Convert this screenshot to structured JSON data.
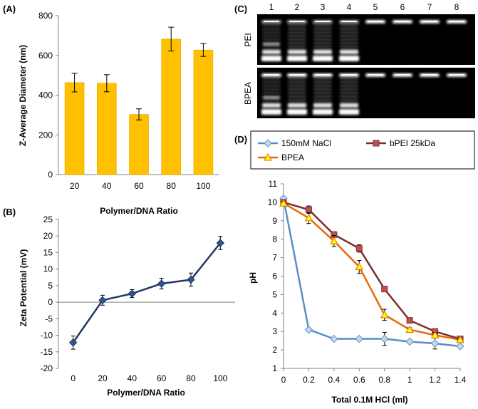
{
  "chart_data": [
    {
      "id": "A",
      "type": "bar",
      "panel_label": "(A)",
      "categories": [
        "20",
        "40",
        "60",
        "80",
        "100"
      ],
      "values": [
        463,
        460,
        303,
        682,
        627
      ],
      "errors": [
        47,
        43,
        28,
        60,
        32
      ],
      "ylim": [
        0,
        800
      ],
      "yticks": [
        0,
        200,
        400,
        600,
        800
      ],
      "xlabel": "Polymer/DNA Ratio",
      "ylabel": "Z-Average Diameter (nm)",
      "color": "#FFC000",
      "grid": false
    },
    {
      "id": "B",
      "type": "line",
      "panel_label": "(B)",
      "x": [
        0,
        20,
        40,
        60,
        80,
        100
      ],
      "y": [
        -12.2,
        0.6,
        2.6,
        5.6,
        6.8,
        17.9
      ],
      "errors": [
        2.0,
        1.5,
        1.2,
        1.6,
        2.0,
        2.0
      ],
      "xlim": [
        -10,
        110
      ],
      "xticks": [
        0,
        20,
        40,
        60,
        80,
        100
      ],
      "ylim": [
        -20,
        25
      ],
      "yticks": [
        -20,
        -15,
        -10,
        -5,
        0,
        5,
        10,
        15,
        20,
        25
      ],
      "xlabel": "Polymer/DNA Ratio",
      "ylabel": "Zeta Potential (mV)",
      "color": "#1F3864",
      "marker": "diamond",
      "grid": false
    },
    {
      "id": "D",
      "type": "line",
      "panel_label": "(D)",
      "x": [
        0,
        0.2,
        0.4,
        0.6,
        0.8,
        1,
        1.2,
        1.4
      ],
      "xticks": [
        "0",
        "0.2",
        "0.4",
        "0.6",
        "0.8",
        "1",
        "1.2",
        "1.4"
      ],
      "xlim": [
        0,
        1.4
      ],
      "ylim": [
        1,
        11
      ],
      "yticks": [
        1,
        2,
        3,
        4,
        5,
        6,
        7,
        8,
        9,
        10,
        11
      ],
      "xlabel": "Total 0.1M HCl (ml)",
      "ylabel": "pH",
      "legend_position": "top",
      "series": [
        {
          "name": "150mM NaCl",
          "values": [
            10.2,
            3.1,
            2.6,
            2.6,
            2.6,
            2.45,
            2.35,
            2.2
          ],
          "errors": [
            0,
            0.05,
            0.05,
            0.1,
            0.35,
            0.1,
            0.3,
            0.1
          ],
          "color": "#5B8CC8",
          "marker": "diamond",
          "fill": "#C5D9F1"
        },
        {
          "name": "bPEI 25kDa",
          "values": [
            10.0,
            9.6,
            8.25,
            7.5,
            5.3,
            3.6,
            3.0,
            2.6
          ],
          "errors": [
            0.1,
            0.2,
            0.15,
            0.2,
            0.15,
            0.1,
            0.1,
            0.1
          ],
          "color": "#7B2E2E",
          "marker": "square",
          "fill": "#C0504D"
        },
        {
          "name": "BPEA",
          "values": [
            9.95,
            9.15,
            7.9,
            6.5,
            3.9,
            3.1,
            2.8,
            2.55
          ],
          "errors": [
            0.1,
            0.3,
            0.3,
            0.35,
            0.3,
            0.1,
            0.15,
            0.1
          ],
          "color": "#E46C0A",
          "marker": "triangle",
          "fill": "#FFFF00"
        }
      ]
    }
  ],
  "gel": {
    "panel_label": "(C)",
    "lanes": [
      "1",
      "2",
      "3",
      "4",
      "5",
      "6",
      "7",
      "8"
    ],
    "rows": [
      "PEI",
      "BPEA"
    ]
  }
}
